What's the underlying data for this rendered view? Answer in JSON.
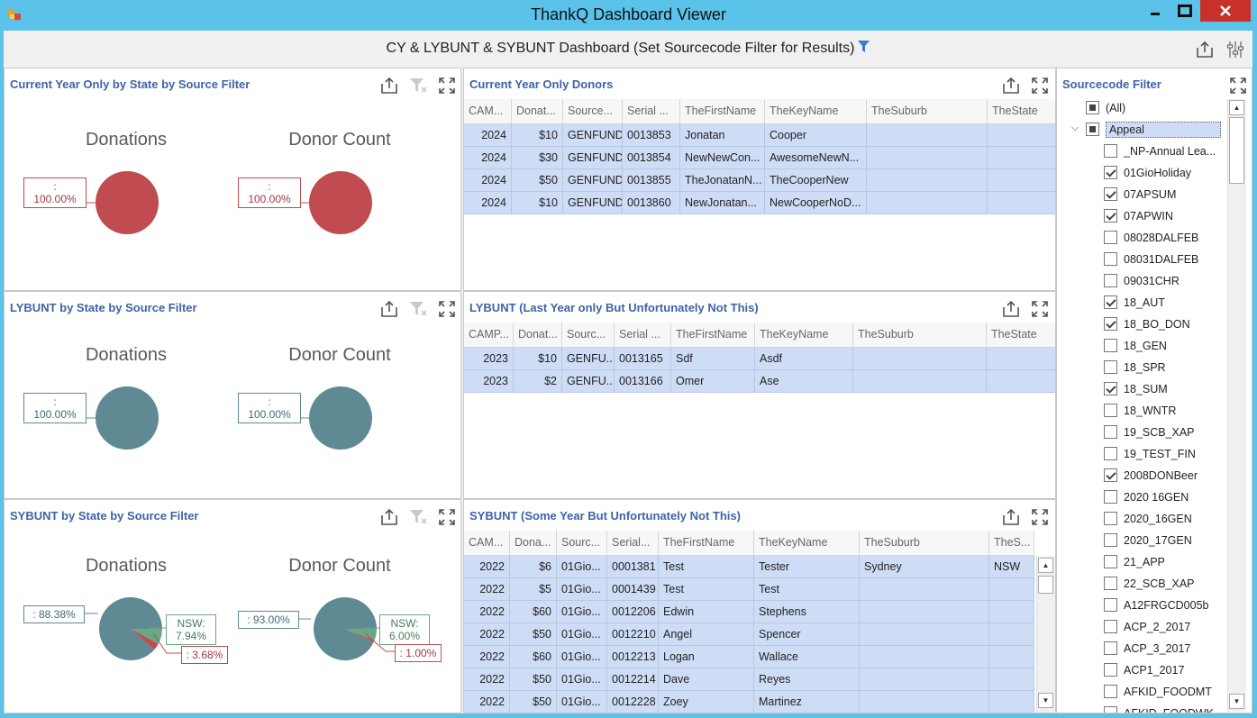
{
  "window": {
    "title": "ThankQ Dashboard Viewer"
  },
  "dashboard": {
    "title": "CY & LYBUNT & SYBUNT Dashboard (Set Sourcecode Filter for Results)"
  },
  "colors": {
    "cy_pie": "#c04b50",
    "ly_pie": "#5f8a93",
    "accent": "#3c64a6",
    "nsw_slice": "#6aa784",
    "row_bg": "#cfdcf6"
  },
  "pies": {
    "cy": {
      "title": "Current Year Only by State by Source Filter",
      "donations_label": "Donations",
      "count_label": "Donor Count",
      "don_callout_1": ":",
      "don_callout_2": "100.00%",
      "cnt_callout_1": ":",
      "cnt_callout_2": "100.00%"
    },
    "ly": {
      "title": "LYBUNT by State by Source Filter",
      "donations_label": "Donations",
      "count_label": "Donor Count",
      "don_callout_1": ":",
      "don_callout_2": "100.00%",
      "cnt_callout_1": ":",
      "cnt_callout_2": "100.00%"
    },
    "sy": {
      "title": "SYBUNT by State by Source Filter",
      "donations_label": "Donations",
      "count_label": "Donor Count",
      "don_main": ": 88.38%",
      "don_nsw_1": "NSW:",
      "don_nsw_2": "7.94%",
      "don_other": ": 3.68%",
      "cnt_main": ": 93.00%",
      "cnt_nsw_1": "NSW:",
      "cnt_nsw_2": "6.00%",
      "cnt_other": ": 1.00%"
    }
  },
  "chart_data": [
    {
      "type": "pie",
      "title": "Donations",
      "series": [
        {
          "values": [
            100.0
          ]
        }
      ]
    },
    {
      "type": "pie",
      "title": "Donor Count",
      "series": [
        {
          "values": [
            100.0
          ]
        }
      ]
    },
    {
      "type": "pie",
      "title": "Donations",
      "series": [
        {
          "values": [
            100.0
          ]
        }
      ]
    },
    {
      "type": "pie",
      "title": "Donor Count",
      "series": [
        {
          "values": [
            100.0
          ]
        }
      ]
    },
    {
      "type": "pie",
      "title": "Donations",
      "categories": [
        "",
        "NSW",
        ""
      ],
      "series": [
        {
          "values": [
            88.38,
            7.94,
            3.68
          ]
        }
      ]
    },
    {
      "type": "pie",
      "title": "Donor Count",
      "categories": [
        "",
        "NSW",
        ""
      ],
      "series": [
        {
          "values": [
            93.0,
            6.0,
            1.0
          ]
        }
      ]
    }
  ],
  "grids": {
    "cy": {
      "title": "Current Year Only Donors",
      "headers": [
        "CAM...",
        "Donat...",
        "Source...",
        "Serial ...",
        "TheFirstName",
        "TheKeyName",
        "TheSuburb",
        "TheState"
      ],
      "rows": [
        [
          "2024",
          "$10",
          "GENFUND",
          "0013853",
          "Jonatan",
          "Cooper",
          "",
          ""
        ],
        [
          "2024",
          "$30",
          "GENFUND",
          "0013854",
          "NewNewCon...",
          "AwesomeNewN...",
          "",
          ""
        ],
        [
          "2024",
          "$50",
          "GENFUND",
          "0013855",
          "TheJonatanN...",
          "TheCooperNew",
          "",
          ""
        ],
        [
          "2024",
          "$10",
          "GENFUND",
          "0013860",
          "NewJonatan...",
          "NewCooperNoD...",
          "",
          ""
        ]
      ]
    },
    "ly": {
      "title": "LYBUNT (Last Year only But Unfortunately Not This)",
      "headers": [
        "CAMP...",
        "Donat...",
        "Sourc...",
        "Serial ...",
        "TheFirstName",
        "TheKeyName",
        "TheSuburb",
        "TheState"
      ],
      "rows": [
        [
          "2023",
          "$10",
          "GENFU...",
          "0013165",
          "Sdf",
          "Asdf",
          "",
          ""
        ],
        [
          "2023",
          "$2",
          "GENFU...",
          "0013166",
          "Omer",
          "Ase",
          "",
          ""
        ]
      ]
    },
    "sy": {
      "title": "SYBUNT (Some Year But Unfortunately Not This)",
      "headers": [
        "CAM...",
        "Dona...",
        "Sourc...",
        "Serial...",
        "TheFirstName",
        "TheKeyName",
        "TheSuburb",
        "TheS..."
      ],
      "rows": [
        [
          "2022",
          "$6",
          "01Gio...",
          "0001381",
          "Test",
          "Tester",
          "Sydney",
          "NSW"
        ],
        [
          "2022",
          "$5",
          "01Gio...",
          "0001439",
          "Test",
          "Test",
          "",
          ""
        ],
        [
          "2022",
          "$60",
          "01Gio...",
          "0012206",
          "Edwin",
          "Stephens",
          "",
          ""
        ],
        [
          "2022",
          "$50",
          "01Gio...",
          "0012210",
          "Angel",
          "Spencer",
          "",
          ""
        ],
        [
          "2022",
          "$60",
          "01Gio...",
          "0012213",
          "Logan",
          "Wallace",
          "",
          ""
        ],
        [
          "2022",
          "$50",
          "01Gio...",
          "0012214",
          "Dave",
          "Reyes",
          "",
          ""
        ],
        [
          "2022",
          "$50",
          "01Gio...",
          "0012228",
          "Zoey",
          "Martinez",
          "",
          ""
        ]
      ]
    }
  },
  "filter": {
    "title": "Sourcecode Filter",
    "items": [
      {
        "label": "(All)",
        "state": "ind",
        "level": 0
      },
      {
        "label": "Appeal",
        "state": "ind",
        "level": 0,
        "expanded": true,
        "selected": true
      },
      {
        "label": "_NP-Annual Lea...",
        "state": "none",
        "level": 1
      },
      {
        "label": "01GioHoliday",
        "state": "chk",
        "level": 1
      },
      {
        "label": "07APSUM",
        "state": "chk",
        "level": 1
      },
      {
        "label": "07APWIN",
        "state": "chk",
        "level": 1
      },
      {
        "label": "08028DALFEB",
        "state": "none",
        "level": 1
      },
      {
        "label": "08031DALFEB",
        "state": "none",
        "level": 1
      },
      {
        "label": "09031CHR",
        "state": "none",
        "level": 1
      },
      {
        "label": "18_AUT",
        "state": "chk",
        "level": 1
      },
      {
        "label": "18_BO_DON",
        "state": "chk",
        "level": 1
      },
      {
        "label": "18_GEN",
        "state": "none",
        "level": 1
      },
      {
        "label": "18_SPR",
        "state": "none",
        "level": 1
      },
      {
        "label": "18_SUM",
        "state": "chk",
        "level": 1
      },
      {
        "label": "18_WNTR",
        "state": "none",
        "level": 1
      },
      {
        "label": "19_SCB_XAP",
        "state": "none",
        "level": 1
      },
      {
        "label": "19_TEST_FIN",
        "state": "none",
        "level": 1
      },
      {
        "label": "2008DONBeer",
        "state": "chk",
        "level": 1
      },
      {
        "label": "2020 16GEN",
        "state": "none",
        "level": 1
      },
      {
        "label": "2020_16GEN",
        "state": "none",
        "level": 1
      },
      {
        "label": "2020_17GEN",
        "state": "none",
        "level": 1
      },
      {
        "label": "21_APP",
        "state": "none",
        "level": 1
      },
      {
        "label": "22_SCB_XAP",
        "state": "none",
        "level": 1
      },
      {
        "label": "A12FRGCD005b",
        "state": "none",
        "level": 1
      },
      {
        "label": "ACP_2_2017",
        "state": "none",
        "level": 1
      },
      {
        "label": "ACP_3_2017",
        "state": "none",
        "level": 1
      },
      {
        "label": "ACP1_2017",
        "state": "none",
        "level": 1
      },
      {
        "label": "AFKID_FOODMT",
        "state": "none",
        "level": 1
      },
      {
        "label": "AFKID_FOODWK",
        "state": "none",
        "level": 1
      }
    ]
  }
}
